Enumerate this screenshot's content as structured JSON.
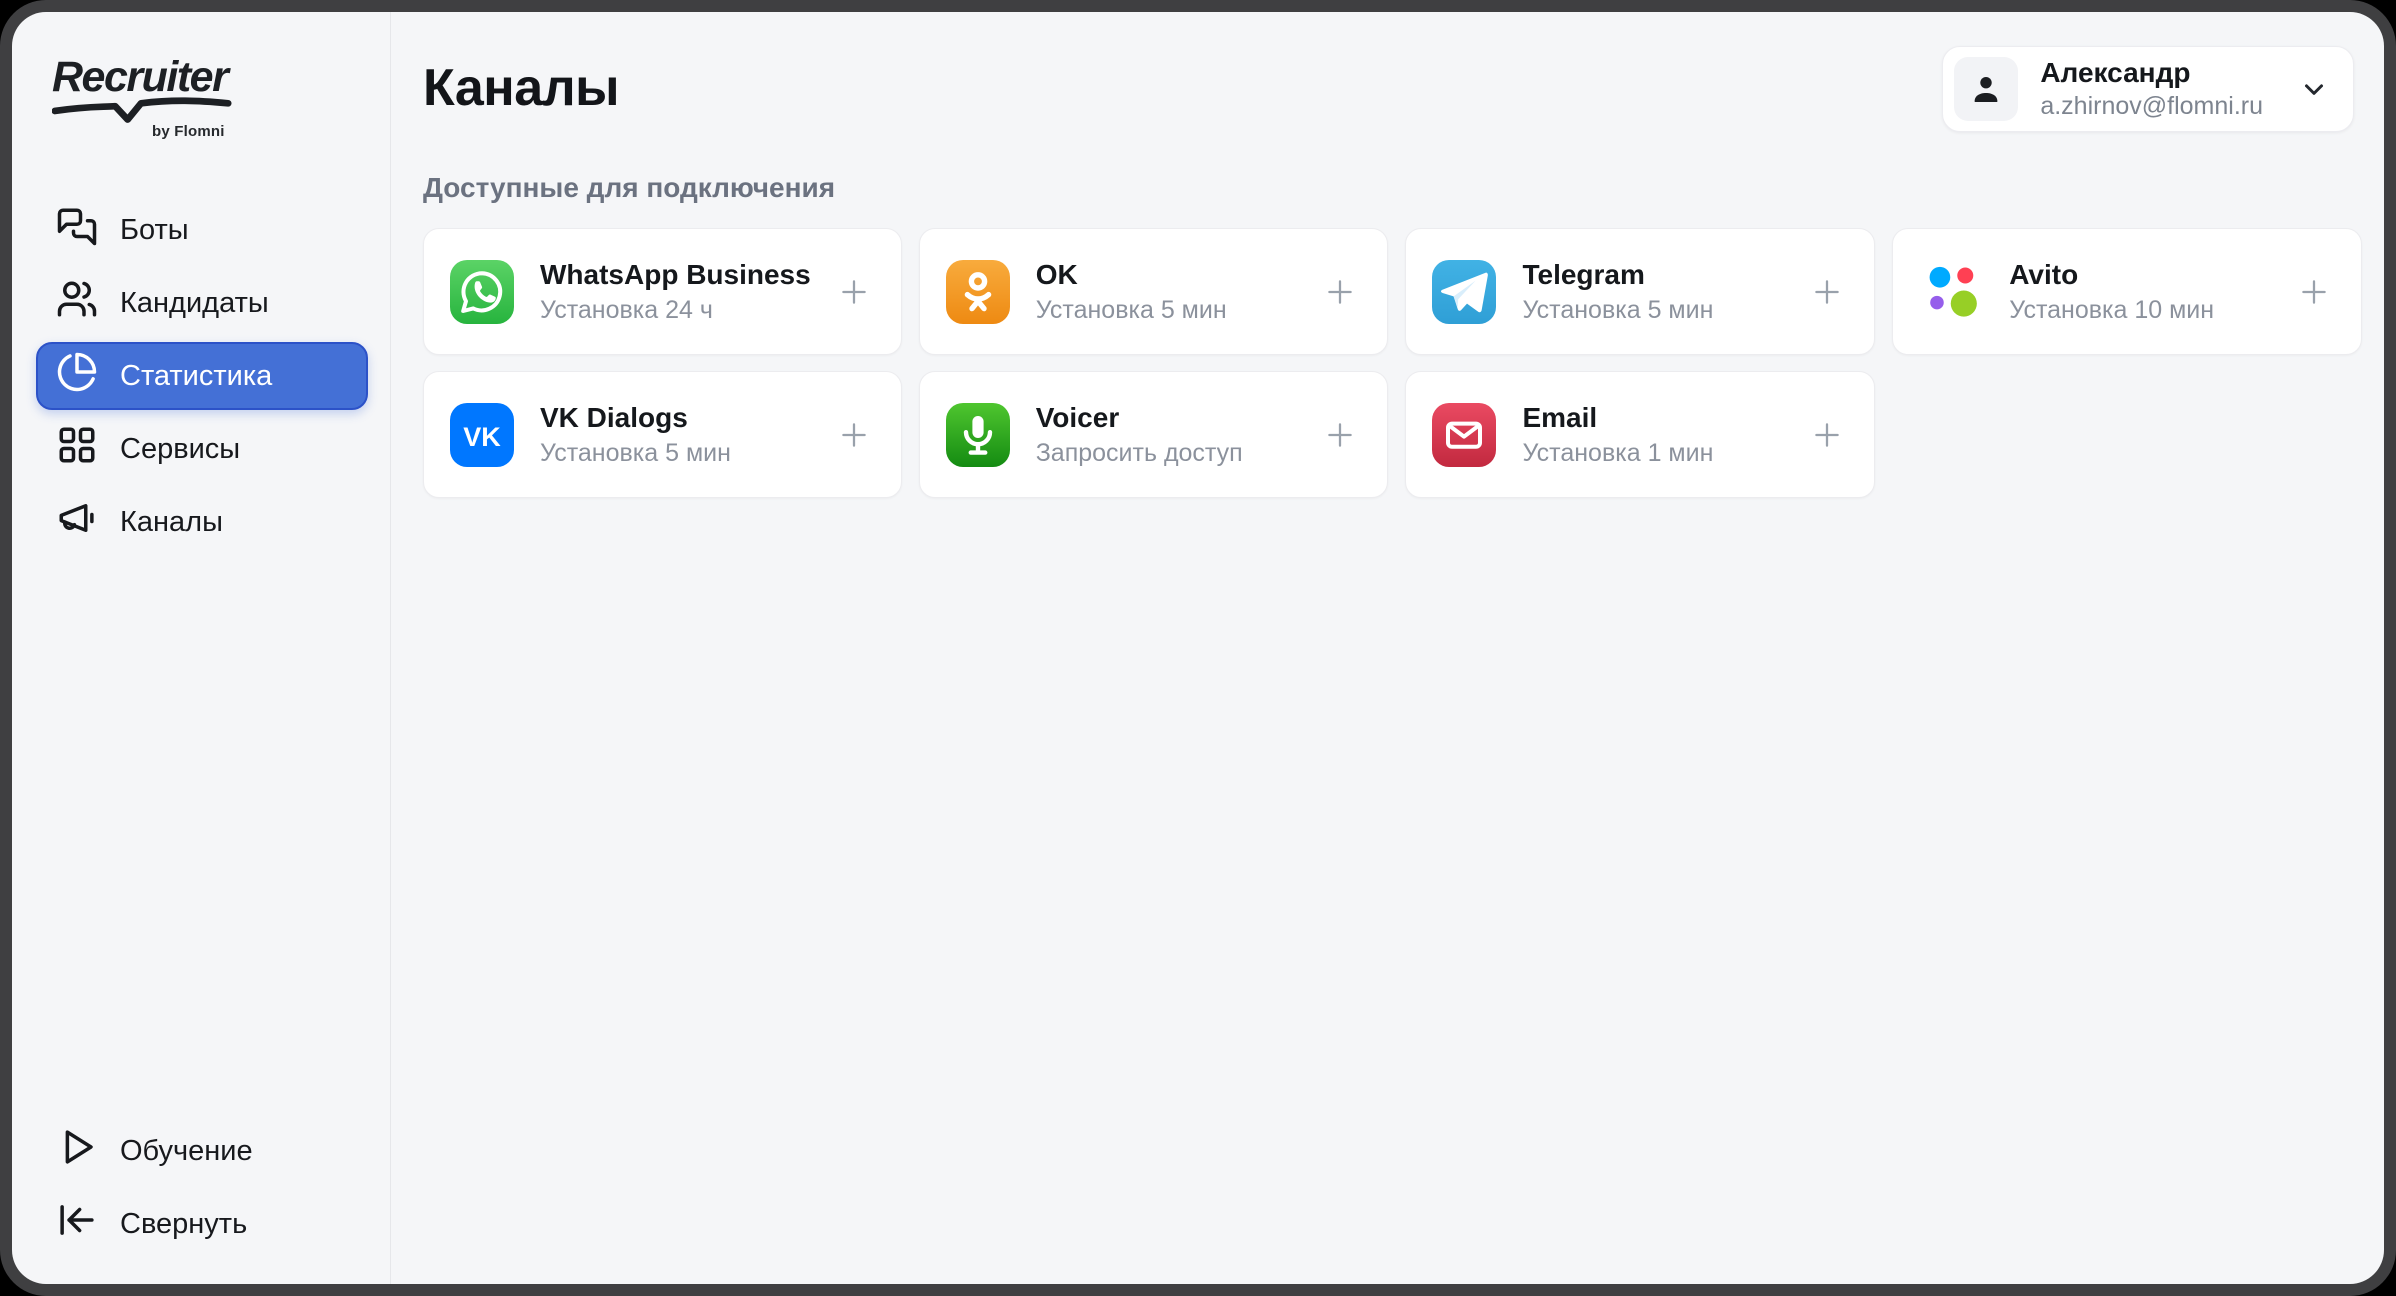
{
  "brand": {
    "name": "Recruiter",
    "byline": "by Flomni"
  },
  "sidebar": {
    "items": [
      {
        "label": "Боты",
        "icon": "bots-icon",
        "active": false
      },
      {
        "label": "Кандидаты",
        "icon": "candidates-icon",
        "active": false
      },
      {
        "label": "Статистика",
        "icon": "statistics-icon",
        "active": true
      },
      {
        "label": "Сервисы",
        "icon": "services-icon",
        "active": false
      },
      {
        "label": "Каналы",
        "icon": "channels-icon",
        "active": false
      }
    ],
    "footer_items": [
      {
        "label": "Обучение",
        "icon": "play-icon"
      },
      {
        "label": "Свернуть",
        "icon": "collapse-icon"
      }
    ]
  },
  "header": {
    "title": "Каналы"
  },
  "user": {
    "name": "Александр",
    "email": "a.zhirnov@flomni.ru"
  },
  "section": {
    "title": "Доступные для подключения"
  },
  "channels": [
    {
      "name": "WhatsApp Business",
      "note": "Установка 24 ч",
      "icon": "whatsapp-icon",
      "icon_bg": [
        "#5bd366",
        "#27b43e"
      ]
    },
    {
      "name": "OK",
      "note": "Установка 5 мин",
      "icon": "ok-icon",
      "icon_bg": [
        "#f8ab3d",
        "#ee8a12"
      ]
    },
    {
      "name": "Telegram",
      "note": "Установка 5 мин",
      "icon": "telegram-icon",
      "icon_bg": [
        "#41b2e5",
        "#2f9fd6"
      ]
    },
    {
      "name": "Avito",
      "note": "Установка 10 мин",
      "icon": "avito-icon",
      "icon_bg": [
        "#ffffff",
        "#ffffff"
      ],
      "palette": {
        "blue": "#00aaff",
        "red": "#ff4053",
        "purple": "#965eeb",
        "green": "#97cf26"
      }
    },
    {
      "name": "VK Dialogs",
      "note": "Установка 5 мин",
      "icon": "vk-icon",
      "icon_bg": [
        "#0077ff",
        "#0077ff"
      ]
    },
    {
      "name": "Voicer",
      "note": "Запросить доступ",
      "icon": "voicer-icon",
      "icon_bg": [
        "#4fc62f",
        "#148b12"
      ]
    },
    {
      "name": "Email",
      "note": "Установка 1 мин",
      "icon": "email-icon",
      "icon_bg": [
        "#ea4a62",
        "#c2293f"
      ]
    }
  ],
  "colors": {
    "frame": "#3f3f41",
    "background": "#f5f6f8",
    "accent": "#4470d6",
    "accent_border": "#2c52c8",
    "card": "#ffffff",
    "muted_text": "#8b919c"
  }
}
